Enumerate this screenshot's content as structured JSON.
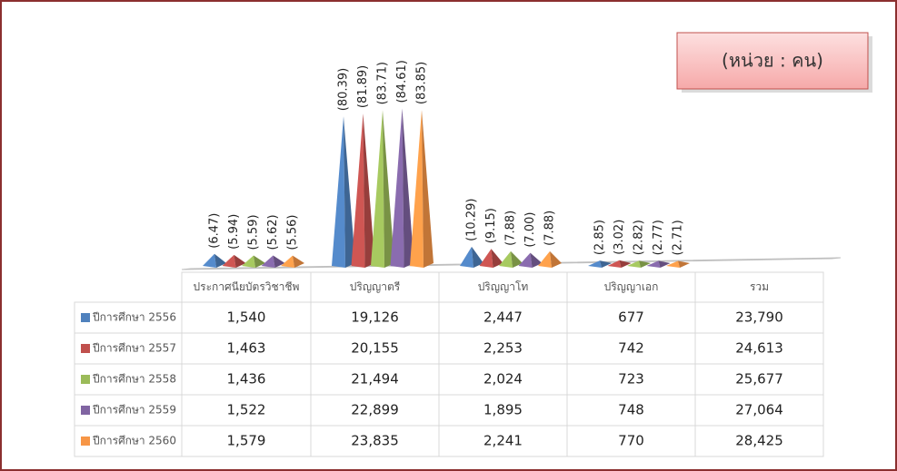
{
  "unit_label": "(หน่วย : คน)",
  "chart_data": {
    "type": "bar",
    "categories": [
      "ประกาศนียบัตรวิชาชีพ",
      "ปริญญาตรี",
      "ปริญญาโท",
      "ปริญญาเอก",
      "รวม"
    ],
    "series": [
      {
        "name": "ปีการศึกษา 2556",
        "color": "#4f81bd",
        "values": [
          6.47,
          80.39,
          10.29,
          2.85,
          null
        ],
        "value_labels": [
          "(6.47)",
          "(80.39)",
          "(10.29)",
          "(2.85)",
          null
        ]
      },
      {
        "name": "ปีการศึกษา 2557",
        "color": "#c0504d",
        "values": [
          5.94,
          81.89,
          9.15,
          3.02,
          null
        ],
        "value_labels": [
          "(5.94)",
          "(81.89)",
          "(9.15)",
          "(3.02)",
          null
        ]
      },
      {
        "name": "ปีการศึกษา 2558",
        "color": "#9bbb59",
        "values": [
          5.59,
          83.71,
          7.88,
          2.82,
          null
        ],
        "value_labels": [
          "(5.59)",
          "(83.71)",
          "(7.88)",
          "(2.82)",
          null
        ]
      },
      {
        "name": "ปีการศึกษา 2559",
        "color": "#8064a2",
        "values": [
          5.62,
          84.61,
          7.0,
          2.77,
          null
        ],
        "value_labels": [
          "(5.62)",
          "(84.61)",
          "(7.00)",
          "(2.77)",
          null
        ]
      },
      {
        "name": "ปีการศึกษา 2560",
        "color": "#f79646",
        "values": [
          5.56,
          83.85,
          7.88,
          2.71,
          null
        ],
        "value_labels": [
          "(5.56)",
          "(83.85)",
          "(7.88)",
          "(2.71)",
          null
        ]
      }
    ]
  },
  "table": {
    "rows": [
      [
        "1,540",
        "19,126",
        "2,447",
        "677",
        "23,790"
      ],
      [
        "1,463",
        "20,155",
        "2,253",
        "742",
        "24,613"
      ],
      [
        "1,436",
        "21,494",
        "2,024",
        "723",
        "25,677"
      ],
      [
        "1,522",
        "22,899",
        "1,895",
        "748",
        "27,064"
      ],
      [
        "1,579",
        "23,835",
        "2,241",
        "770",
        "28,425"
      ]
    ]
  }
}
